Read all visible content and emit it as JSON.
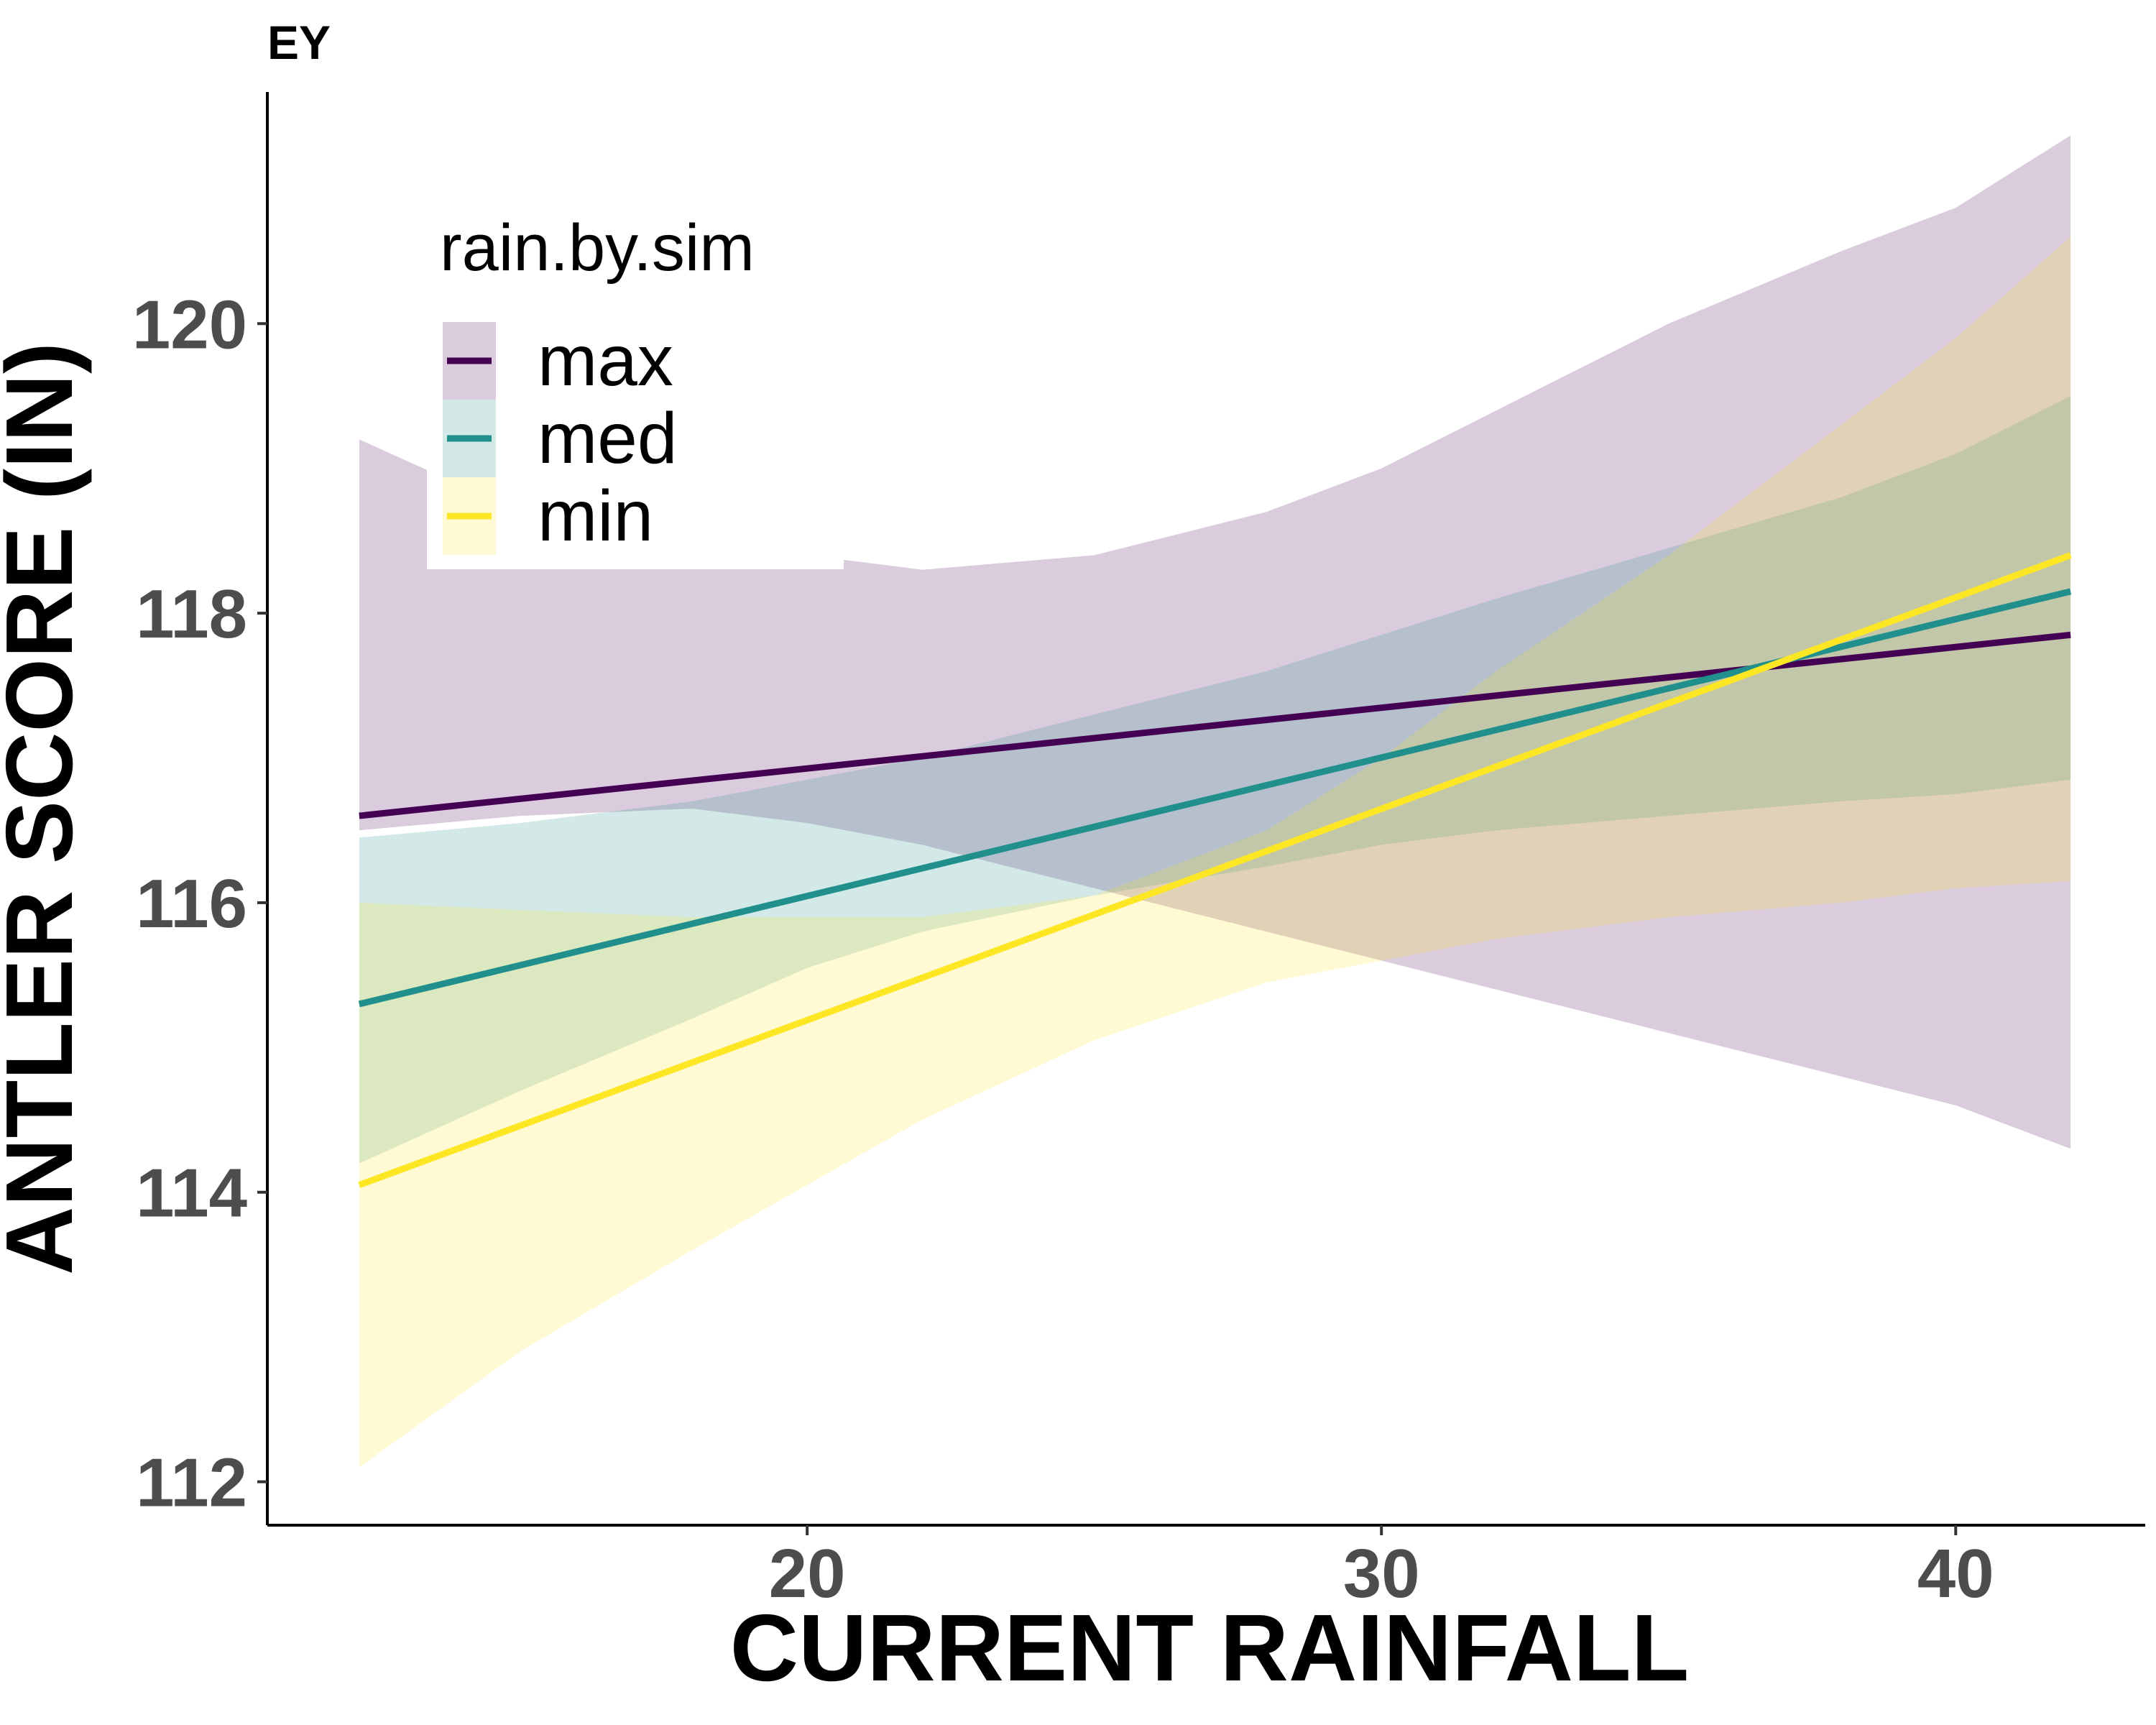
{
  "chart_data": {
    "type": "line",
    "panel_tag": "EY",
    "xlabel": "CURRENT RAINFALL",
    "ylabel": "ANTLER SCORE (IN)",
    "xlim": [
      10.6,
      43.3
    ],
    "ylim": [
      111.7,
      121.6
    ],
    "x_ticks": [
      20,
      30,
      40
    ],
    "y_ticks": [
      112,
      114,
      116,
      118,
      120
    ],
    "x_tick_labels": [
      "20",
      "30",
      "40"
    ],
    "y_tick_labels": [
      "112",
      "114",
      "116",
      "118",
      "120"
    ],
    "grid": false,
    "legend": {
      "title": "rain.by.sim",
      "position": "top-left"
    },
    "x": [
      12.2,
      42.0
    ],
    "series": [
      {
        "name": "max",
        "color": "#440154",
        "band_opacity": 0.2,
        "values": [
          116.6,
          117.85
        ],
        "band_x": [
          12.2,
          15,
          18,
          20,
          22,
          25,
          28,
          30,
          32,
          35,
          38,
          40,
          42.0
        ],
        "band_upper": [
          119.2,
          118.7,
          118.4,
          118.4,
          118.3,
          118.4,
          118.7,
          119.0,
          119.4,
          120.0,
          120.5,
          120.8,
          121.3
        ],
        "band_lower": [
          116.5,
          116.6,
          116.65,
          116.55,
          116.4,
          116.1,
          115.8,
          115.6,
          115.4,
          115.1,
          114.8,
          114.6,
          114.3
        ]
      },
      {
        "name": "med",
        "color": "#21908C",
        "band_opacity": 0.2,
        "values": [
          115.3,
          118.15
        ],
        "band_x": [
          12.2,
          15,
          18,
          20,
          22,
          25,
          28,
          30,
          32,
          35,
          38,
          40,
          42.0
        ],
        "band_upper": [
          116.45,
          116.55,
          116.7,
          116.85,
          117.0,
          117.3,
          117.6,
          117.85,
          118.1,
          118.45,
          118.8,
          119.1,
          119.5
        ],
        "band_lower": [
          114.2,
          114.7,
          115.2,
          115.55,
          115.8,
          116.05,
          116.25,
          116.4,
          116.5,
          116.6,
          116.7,
          116.75,
          116.85
        ]
      },
      {
        "name": "min",
        "color": "#FDE725",
        "band_opacity": 0.2,
        "values": [
          114.05,
          118.4
        ],
        "band_x": [
          12.2,
          15,
          18,
          20,
          22,
          25,
          28,
          30,
          32,
          35,
          38,
          40,
          42.0
        ],
        "band_upper": [
          116.0,
          115.95,
          115.9,
          115.9,
          115.9,
          116.05,
          116.5,
          117.0,
          117.6,
          118.4,
          119.3,
          119.9,
          120.6
        ],
        "band_lower": [
          112.1,
          112.9,
          113.6,
          114.05,
          114.5,
          115.05,
          115.45,
          115.6,
          115.75,
          115.9,
          116.0,
          116.1,
          116.15
        ]
      }
    ]
  }
}
